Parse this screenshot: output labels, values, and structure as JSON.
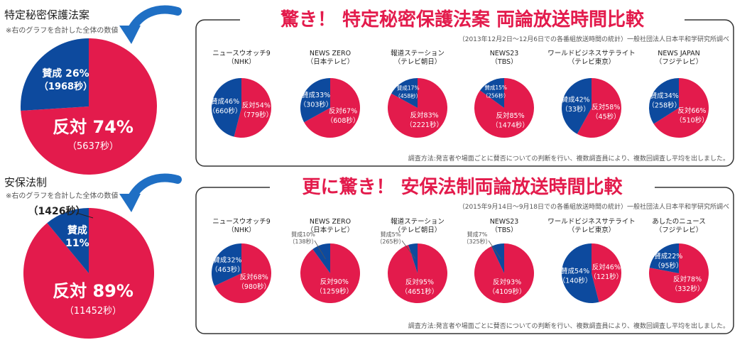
{
  "colors": {
    "yes": "#0d4a9e",
    "no": "#e31b4c",
    "border": "#333333",
    "arrow": "#1f6fc4",
    "heading": "#e31b4c"
  },
  "sections": [
    {
      "left_title": "特定秘密保護法案",
      "left_note": "※右のグラフを合計した全体の数値",
      "heading": "驚き！ 特定秘密保護法案 両論放送時間比較",
      "source": "（2013年12月2日〜12月6日での各番組放送時間の統計）一般社団法人日本平和学研究所調べ",
      "method": "調査方法:発言者や場面ごとに賛否についての判断を行い、複数調査員により、複数回調査し平均を出しました。"
    },
    {
      "left_title": "安保法制",
      "left_note": "※右のグラフを合計した全体の数値",
      "heading": "更に驚き！ 安保法制両論放送時間比較",
      "source": "（2015年9月14日〜9月18日での各番組放送時間の統計）一般社団法人日本平和学研究所調べ",
      "method": "調査方法:発言者や場面ごとに賛否についての判断を行い、複数調査員により、複数回調査し平均を出しました。"
    }
  ],
  "chart_data": [
    {
      "type": "pie",
      "title": "特定秘密保護法案（全体）",
      "categories": [
        "賛成",
        "反対"
      ],
      "values": [
        26,
        74
      ],
      "labels": [
        {
          "text": "賛成 26%",
          "sub": "（1968秒）"
        },
        {
          "text": "反対 74%",
          "sub": "（5637秒）"
        }
      ]
    },
    {
      "type": "pie",
      "title": "ニュースウオッチ9（NHK）",
      "name_lines": [
        "ニュースウオッチ9",
        "（NHK）"
      ],
      "categories": [
        "賛成",
        "反対"
      ],
      "values": [
        46,
        54
      ],
      "labels": [
        {
          "text": "賛成46%",
          "sub": "（660秒）"
        },
        {
          "text": "反対54%",
          "sub": "（779秒）"
        }
      ]
    },
    {
      "type": "pie",
      "title": "NEWS ZERO（日本テレビ）",
      "name_lines": [
        "NEWS ZERO",
        "（日本テレビ）"
      ],
      "categories": [
        "賛成",
        "反対"
      ],
      "values": [
        33,
        67
      ],
      "labels": [
        {
          "text": "賛成33%",
          "sub": "（303秒）"
        },
        {
          "text": "反対67%",
          "sub": "（608秒）"
        }
      ]
    },
    {
      "type": "pie",
      "title": "報道ステーション（テレビ朝日）",
      "name_lines": [
        "報道ステーション",
        "（テレビ朝日）"
      ],
      "categories": [
        "賛成",
        "反対"
      ],
      "values": [
        17,
        83
      ],
      "labels": [
        {
          "text": "賛成17%",
          "sub": "（458秒）"
        },
        {
          "text": "反対83%",
          "sub": "（2221秒）"
        }
      ]
    },
    {
      "type": "pie",
      "title": "NEWS23（TBS）",
      "name_lines": [
        "NEWS23",
        "（TBS）"
      ],
      "categories": [
        "賛成",
        "反対"
      ],
      "values": [
        15,
        85
      ],
      "labels": [
        {
          "text": "賛成15%",
          "sub": "（256秒）"
        },
        {
          "text": "反対85%",
          "sub": "（1474秒）"
        }
      ]
    },
    {
      "type": "pie",
      "title": "ワールドビジネスサテライト（テレビ東京）",
      "name_lines": [
        "ワールドビジネスサテライト",
        "（テレビ東京）"
      ],
      "categories": [
        "賛成",
        "反対"
      ],
      "values": [
        42,
        58
      ],
      "labels": [
        {
          "text": "賛成42%",
          "sub": "（33秒）"
        },
        {
          "text": "反対58%",
          "sub": "（45秒）"
        }
      ]
    },
    {
      "type": "pie",
      "title": "NEWS JAPAN（フジテレビ）",
      "name_lines": [
        "NEWS JAPAN",
        "（フジテレビ）"
      ],
      "categories": [
        "賛成",
        "反対"
      ],
      "values": [
        34,
        66
      ],
      "labels": [
        {
          "text": "賛成34%",
          "sub": "（258秒）"
        },
        {
          "text": "反対66%",
          "sub": "（510秒）"
        }
      ]
    },
    {
      "type": "pie",
      "title": "安保法制（全体）",
      "categories": [
        "賛成",
        "反対"
      ],
      "values": [
        11,
        89
      ],
      "labels": [
        {
          "text": "賛成",
          "sub": "11%",
          "callout": "（1426秒）"
        },
        {
          "text": "反対 89%",
          "sub": "（11452秒）"
        }
      ]
    },
    {
      "type": "pie",
      "title": "ニュースウオッチ9（NHK）",
      "name_lines": [
        "ニュースウオッチ9",
        "（NHK）"
      ],
      "categories": [
        "賛成",
        "反対"
      ],
      "values": [
        32,
        68
      ],
      "labels": [
        {
          "text": "賛成32%",
          "sub": "（463秒）"
        },
        {
          "text": "反対68%",
          "sub": "（980秒）"
        }
      ]
    },
    {
      "type": "pie",
      "title": "NEWS ZERO（日本テレビ）",
      "name_lines": [
        "NEWS ZERO",
        "（日本テレビ）"
      ],
      "categories": [
        "賛成",
        "反対"
      ],
      "values": [
        10,
        90
      ],
      "labels": [
        {
          "text": "賛成10%",
          "sub": "（138秒）"
        },
        {
          "text": "反対90%",
          "sub": "（1259秒）"
        }
      ]
    },
    {
      "type": "pie",
      "title": "報道ステーション（テレビ朝日）",
      "name_lines": [
        "報道ステーション",
        "（テレビ朝日）"
      ],
      "categories": [
        "賛成",
        "反対"
      ],
      "values": [
        5,
        95
      ],
      "labels": [
        {
          "text": "賛成5%",
          "sub": "（265秒）"
        },
        {
          "text": "反対95%",
          "sub": "（4651秒）"
        }
      ]
    },
    {
      "type": "pie",
      "title": "NEWS23（TBS）",
      "name_lines": [
        "NEWS23",
        "（TBS）"
      ],
      "categories": [
        "賛成",
        "反対"
      ],
      "values": [
        7,
        93
      ],
      "labels": [
        {
          "text": "賛成7%",
          "sub": "（325秒）"
        },
        {
          "text": "反対93%",
          "sub": "（4109秒）"
        }
      ]
    },
    {
      "type": "pie",
      "title": "ワールドビジネスサテライト（テレビ東京）",
      "name_lines": [
        "ワールドビジネスサテライト",
        "（テレビ東京）"
      ],
      "categories": [
        "賛成",
        "反対"
      ],
      "values": [
        54,
        46
      ],
      "labels": [
        {
          "text": "賛成54%",
          "sub": "（140秒）"
        },
        {
          "text": "反対46%",
          "sub": "（121秒）"
        }
      ]
    },
    {
      "type": "pie",
      "title": "あしたのニュース（フジテレビ）",
      "name_lines": [
        "あしたのニュース",
        "（フジテレビ）"
      ],
      "categories": [
        "賛成",
        "反対"
      ],
      "values": [
        22,
        78
      ],
      "labels": [
        {
          "text": "賛成22%",
          "sub": "（95秒）"
        },
        {
          "text": "反対78%",
          "sub": "（332秒）"
        }
      ]
    }
  ]
}
